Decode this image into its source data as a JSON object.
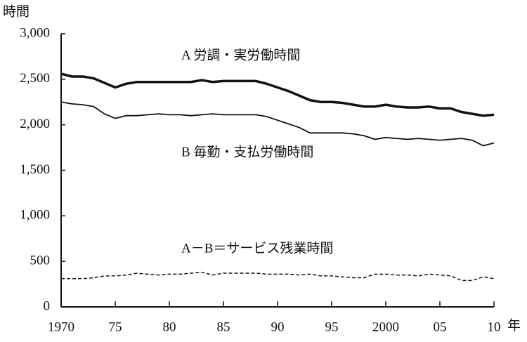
{
  "chart_data": {
    "type": "line",
    "y_label": "時間",
    "x_label": "年",
    "x": [
      1970,
      1971,
      1972,
      1973,
      1974,
      1975,
      1976,
      1977,
      1978,
      1979,
      1980,
      1981,
      1982,
      1983,
      1984,
      1985,
      1986,
      1987,
      1988,
      1989,
      1990,
      1991,
      1992,
      1993,
      1994,
      1995,
      1996,
      1997,
      1998,
      1999,
      2000,
      2001,
      2002,
      2003,
      2004,
      2005,
      2006,
      2007,
      2008,
      2009,
      2010
    ],
    "series": [
      {
        "name": "A 労調・実労働時間",
        "color": "#111111",
        "style": "thick",
        "values": [
          2560,
          2530,
          2530,
          2510,
          2460,
          2410,
          2450,
          2470,
          2470,
          2470,
          2470,
          2470,
          2470,
          2490,
          2470,
          2480,
          2480,
          2480,
          2480,
          2450,
          2410,
          2370,
          2320,
          2270,
          2250,
          2250,
          2240,
          2220,
          2200,
          2200,
          2220,
          2200,
          2190,
          2190,
          2200,
          2180,
          2180,
          2140,
          2120,
          2100,
          2110
        ]
      },
      {
        "name": "B 毎勤・支払労働時間",
        "color": "#111111",
        "style": "thin",
        "values": [
          2250,
          2230,
          2220,
          2200,
          2120,
          2070,
          2100,
          2100,
          2110,
          2120,
          2110,
          2110,
          2100,
          2110,
          2120,
          2110,
          2110,
          2110,
          2110,
          2090,
          2050,
          2010,
          1970,
          1910,
          1910,
          1910,
          1910,
          1900,
          1880,
          1840,
          1860,
          1850,
          1840,
          1850,
          1840,
          1830,
          1840,
          1850,
          1830,
          1770,
          1800
        ]
      },
      {
        "name": "A－B＝サービス残業時間",
        "color": "#111111",
        "style": "dashed",
        "values": [
          310,
          310,
          310,
          320,
          340,
          340,
          350,
          370,
          360,
          350,
          360,
          360,
          370,
          380,
          350,
          370,
          370,
          370,
          370,
          360,
          360,
          360,
          350,
          360,
          340,
          340,
          330,
          320,
          320,
          360,
          360,
          350,
          350,
          340,
          360,
          350,
          340,
          290,
          290,
          330,
          310
        ]
      }
    ],
    "xlim": [
      1970,
      2010
    ],
    "xticks": [
      1970,
      {
        "value": 1975,
        "label": "75"
      },
      {
        "value": 1980,
        "label": "80"
      },
      {
        "value": 1985,
        "label": "85"
      },
      {
        "value": 1990,
        "label": "90"
      },
      {
        "value": 1995,
        "label": "95"
      },
      2000,
      {
        "value": 2005,
        "label": "05"
      },
      {
        "value": 2010,
        "label": "10"
      }
    ],
    "ylim": [
      0,
      3000
    ],
    "yticks": [
      0,
      500,
      {
        "value": 1000,
        "label": "1,000"
      },
      {
        "value": 1500,
        "label": "1,500"
      },
      {
        "value": 2000,
        "label": "2,000"
      },
      {
        "value": 2500,
        "label": "2,500"
      },
      {
        "value": 3000,
        "label": "3,000"
      }
    ],
    "grid": false
  }
}
